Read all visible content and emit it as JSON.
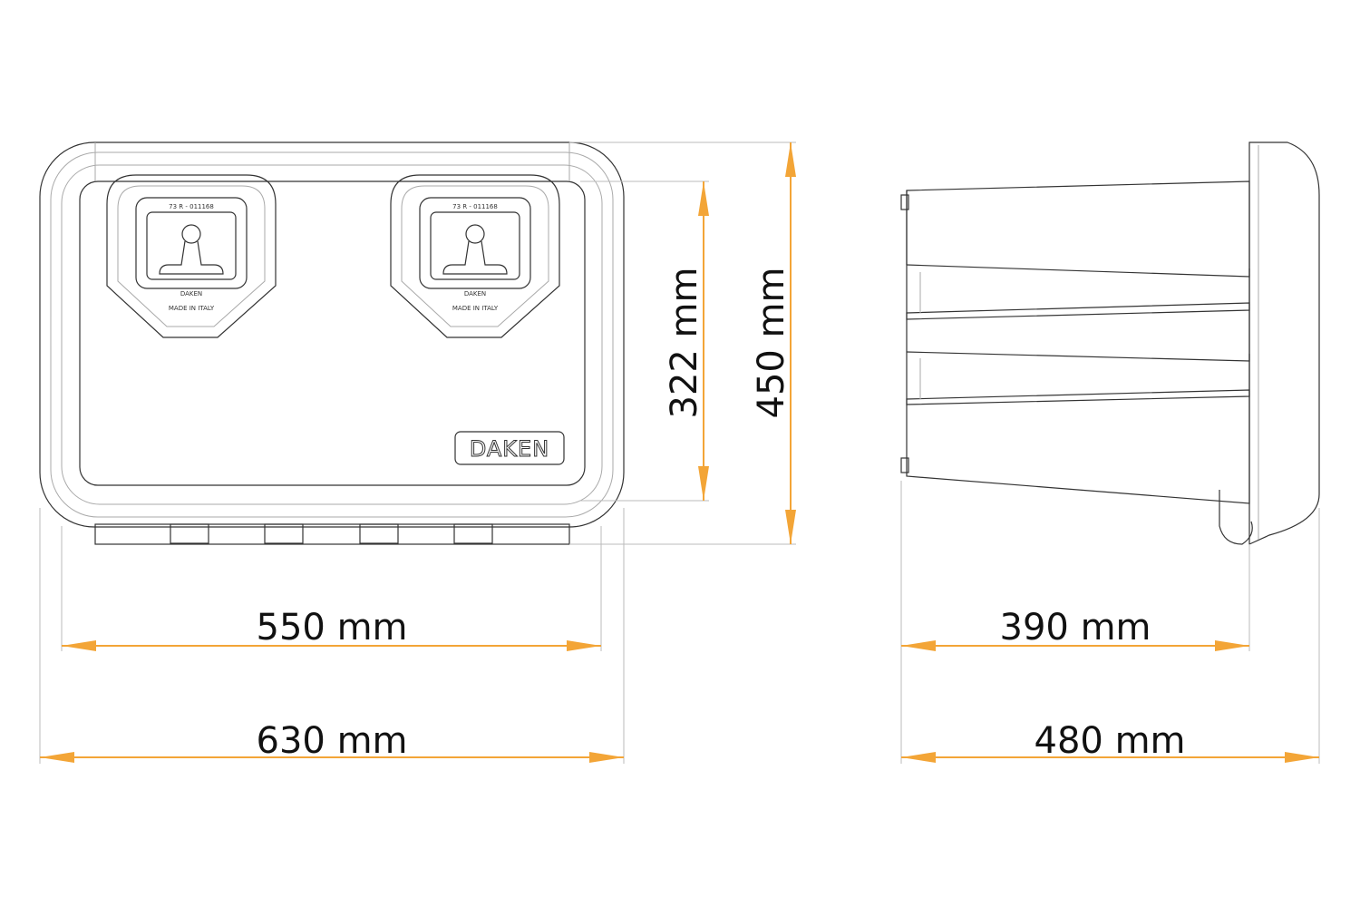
{
  "brand": "DAKEN",
  "locks": [
    {
      "code": "73 R - 011168",
      "brand": "DAKEN",
      "origin": "MADE IN ITALY"
    },
    {
      "code": "73 R - 011168",
      "brand": "DAKEN",
      "origin": "MADE IN ITALY"
    }
  ],
  "dimensions": {
    "front_inner_width": "550 mm",
    "front_outer_width": "630 mm",
    "inner_height": "322 mm",
    "outer_height": "450 mm",
    "side_inner_depth": "390 mm",
    "side_outer_depth": "480 mm"
  }
}
